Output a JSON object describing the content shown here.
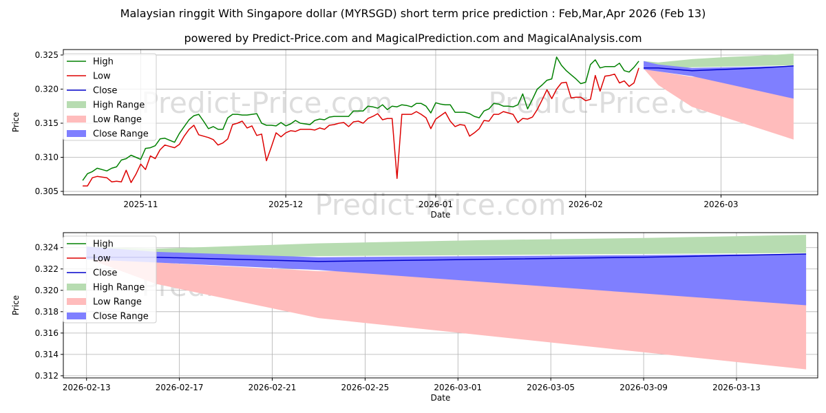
{
  "title": "Malaysian ringgit With Singapore dollar (MYRSGD) short term price prediction : Feb,Mar,Apr 2026 (Feb 13)",
  "subtitle": "powered by Predict-Price.com and MagicalPrediction.com and MagicalAnalysis.com",
  "watermark": "Predict-Price.com",
  "colors": {
    "high": "#008000",
    "low": "#dd0000",
    "close": "#0000cc",
    "high_range": "#b7dcb1",
    "low_range": "#ffbcbc",
    "close_range": "#7f7fff",
    "grid": "#b0b0b0"
  },
  "chart_data": [
    {
      "type": "line",
      "name": "history",
      "xlabel": "Date",
      "ylabel": "Price",
      "xlim": [
        "2025-10-16",
        "2026-03-21"
      ],
      "ylim": [
        0.3045,
        0.3258
      ],
      "yticks": [
        {
          "v": 0.305,
          "label": "0.305"
        },
        {
          "v": 0.31,
          "label": "0.310"
        },
        {
          "v": 0.315,
          "label": "0.315"
        },
        {
          "v": 0.32,
          "label": "0.320"
        },
        {
          "v": 0.325,
          "label": "0.325"
        }
      ],
      "xticks": [
        {
          "d": "2025-11-01",
          "label": "2025-11"
        },
        {
          "d": "2025-12-01",
          "label": "2025-12"
        },
        {
          "d": "2026-01-01",
          "label": "2026-01"
        },
        {
          "d": "2026-02-01",
          "label": "2026-02"
        },
        {
          "d": "2026-03-01",
          "label": "2026-03"
        }
      ],
      "legend": [
        "High",
        "Low",
        "Close",
        "High Range",
        "Low Range",
        "Close Range"
      ],
      "start_date": "2025-10-20",
      "high": [
        0.3066,
        0.3076,
        0.3079,
        0.3084,
        0.3082,
        0.308,
        0.3084,
        0.3086,
        0.3096,
        0.3098,
        0.3103,
        0.31,
        0.3097,
        0.3113,
        0.3114,
        0.3117,
        0.3127,
        0.3128,
        0.3125,
        0.3122,
        0.3135,
        0.3145,
        0.3155,
        0.3161,
        0.3163,
        0.3153,
        0.3142,
        0.3145,
        0.3141,
        0.3141,
        0.3158,
        0.3163,
        0.3163,
        0.3162,
        0.3162,
        0.3163,
        0.3164,
        0.315,
        0.3147,
        0.3147,
        0.3146,
        0.3151,
        0.3146,
        0.3149,
        0.3154,
        0.315,
        0.3149,
        0.3148,
        0.3154,
        0.3156,
        0.3155,
        0.3159,
        0.316,
        0.316,
        0.316,
        0.316,
        0.3168,
        0.3168,
        0.3168,
        0.3175,
        0.3174,
        0.3172,
        0.3177,
        0.317,
        0.3175,
        0.3174,
        0.3177,
        0.3176,
        0.3174,
        0.3179,
        0.3179,
        0.3175,
        0.3165,
        0.318,
        0.3178,
        0.3177,
        0.3177,
        0.3166,
        0.3166,
        0.3166,
        0.3164,
        0.316,
        0.3158,
        0.3168,
        0.3171,
        0.3179,
        0.3178,
        0.3175,
        0.3175,
        0.3174,
        0.3177,
        0.3193,
        0.3171,
        0.3185,
        0.32,
        0.3206,
        0.3213,
        0.3215,
        0.3247,
        0.3235,
        0.3227,
        0.3221,
        0.3215,
        0.3208,
        0.321,
        0.3236,
        0.3243,
        0.3231,
        0.3233,
        0.3233,
        0.3233,
        0.3238,
        0.3227,
        0.3225,
        0.3232,
        0.3241
      ],
      "low": [
        0.3058,
        0.3058,
        0.307,
        0.3072,
        0.3071,
        0.307,
        0.3064,
        0.3065,
        0.3064,
        0.3081,
        0.3063,
        0.3075,
        0.309,
        0.3082,
        0.3102,
        0.3098,
        0.3111,
        0.3118,
        0.3116,
        0.3114,
        0.3119,
        0.3131,
        0.3141,
        0.3147,
        0.3133,
        0.3131,
        0.3129,
        0.3126,
        0.3118,
        0.3121,
        0.3127,
        0.3148,
        0.315,
        0.3153,
        0.3143,
        0.3146,
        0.3132,
        0.3134,
        0.3095,
        0.3115,
        0.3136,
        0.313,
        0.3136,
        0.3139,
        0.3138,
        0.3141,
        0.3141,
        0.3141,
        0.314,
        0.3143,
        0.3141,
        0.3147,
        0.3148,
        0.315,
        0.3151,
        0.3145,
        0.3152,
        0.3153,
        0.315,
        0.3157,
        0.316,
        0.3164,
        0.3155,
        0.3157,
        0.3157,
        0.3069,
        0.3163,
        0.3163,
        0.3163,
        0.3167,
        0.3163,
        0.3158,
        0.3142,
        0.3156,
        0.3161,
        0.3166,
        0.3153,
        0.3145,
        0.3148,
        0.3147,
        0.3131,
        0.3136,
        0.3142,
        0.3154,
        0.3153,
        0.3163,
        0.3163,
        0.3167,
        0.3165,
        0.3163,
        0.3151,
        0.3157,
        0.3156,
        0.3159,
        0.317,
        0.3184,
        0.3199,
        0.3186,
        0.32,
        0.3209,
        0.321,
        0.3187,
        0.3188,
        0.3188,
        0.3183,
        0.3185,
        0.322,
        0.3197,
        0.3219,
        0.322,
        0.3222,
        0.3209,
        0.3212,
        0.3204,
        0.3209,
        0.3231
      ]
    },
    {
      "type": "area",
      "name": "forecast",
      "xlabel": "Date",
      "ylabel": "Price",
      "xlim": [
        "2026-02-12",
        "2026-03-16T12:00"
      ],
      "ylim": [
        0.3118,
        0.3254
      ],
      "yticks": [
        {
          "v": 0.312,
          "label": "0.312"
        },
        {
          "v": 0.314,
          "label": "0.314"
        },
        {
          "v": 0.316,
          "label": "0.316"
        },
        {
          "v": 0.318,
          "label": "0.318"
        },
        {
          "v": 0.32,
          "label": "0.320"
        },
        {
          "v": 0.322,
          "label": "0.322"
        },
        {
          "v": 0.324,
          "label": "0.324"
        }
      ],
      "xticks": [
        {
          "d": "2026-02-13",
          "label": "2026-02-13"
        },
        {
          "d": "2026-02-17",
          "label": "2026-02-17"
        },
        {
          "d": "2026-02-21",
          "label": "2026-02-21"
        },
        {
          "d": "2026-02-25",
          "label": "2026-02-25"
        },
        {
          "d": "2026-03-01",
          "label": "2026-03-01"
        },
        {
          "d": "2026-03-05",
          "label": "2026-03-05"
        },
        {
          "d": "2026-03-09",
          "label": "2026-03-09"
        },
        {
          "d": "2026-03-13",
          "label": "2026-03-13"
        }
      ],
      "legend": [
        "High",
        "Low",
        "Close",
        "High Range",
        "Low Range",
        "Close Range"
      ],
      "dates": [
        "2026-02-13",
        "2026-02-16",
        "2026-02-23",
        "2026-03-02",
        "2026-03-09",
        "2026-03-16"
      ],
      "high_range_upper": [
        0.3241,
        0.3239,
        0.3244,
        0.3247,
        0.3249,
        0.3252
      ],
      "high_range_lower": [
        0.3232,
        0.323,
        0.3232,
        0.3233,
        0.3234,
        0.3235
      ],
      "low_range_upper": [
        0.323,
        0.3226,
        0.3218,
        0.3218,
        0.3219,
        0.322
      ],
      "low_range_lower": [
        0.323,
        0.3206,
        0.3174,
        0.3158,
        0.3142,
        0.3126
      ],
      "close_range_upper": [
        0.3241,
        0.3236,
        0.3231,
        0.3232,
        0.3233,
        0.3234
      ],
      "close_range_lower": [
        0.3229,
        0.3226,
        0.3219,
        0.3208,
        0.3197,
        0.3186
      ],
      "close": [
        0.3231,
        0.3231,
        0.3227,
        0.3229,
        0.3231,
        0.3234
      ]
    }
  ]
}
